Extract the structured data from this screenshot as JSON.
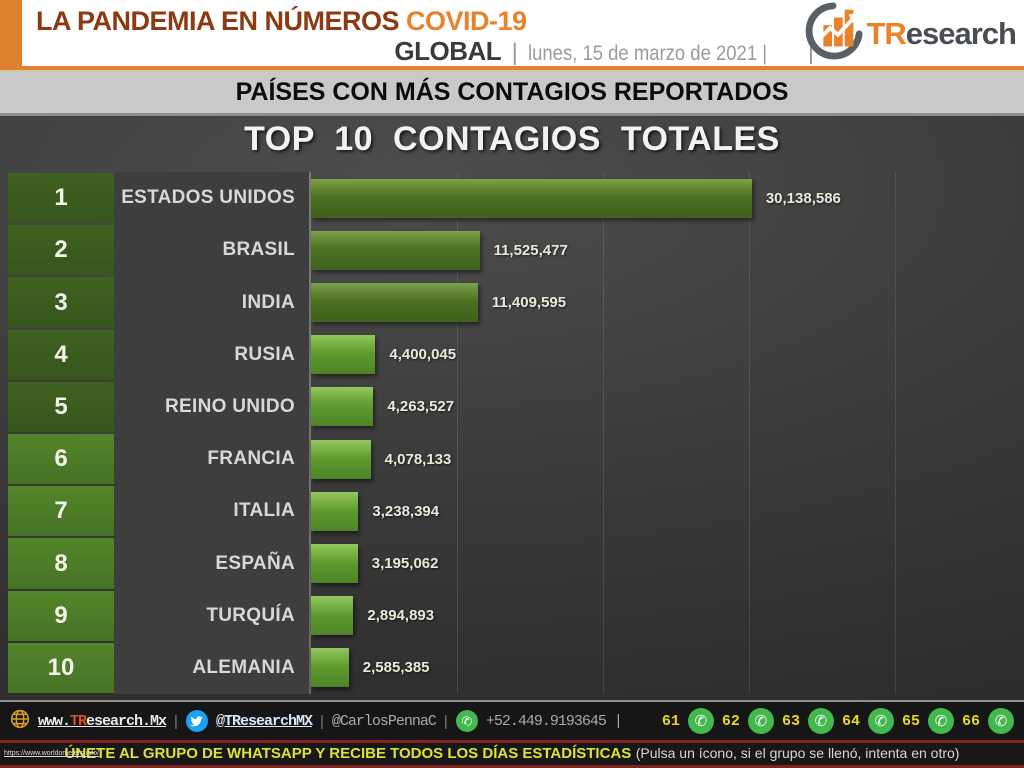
{
  "header": {
    "brand": "LA PANDEMIA EN NÚMEROS",
    "brand_accent": "COVID-19",
    "scope": "GLOBAL",
    "sep": "|",
    "date": "lunes, 15 de marzo de 2021",
    "date_suffix": "|",
    "logo": {
      "orange": "TR",
      "dark": "esearch"
    }
  },
  "subheader": {
    "title": "PAÍSES CON MÁS CONTAGIOS REPORTADOS"
  },
  "chart_data": {
    "type": "bar",
    "orientation": "horizontal",
    "title": "TOP 10 CONTAGIOS TOTALES",
    "ranks": [
      "1",
      "2",
      "3",
      "4",
      "5",
      "6",
      "7",
      "8",
      "9",
      "10"
    ],
    "categories": [
      "ESTADOS UNIDOS",
      "BRASIL",
      "INDIA",
      "RUSIA",
      "REINO UNIDO",
      "FRANCIA",
      "ITALIA",
      "ESPAÑA",
      "TURQUÍA",
      "ALEMANIA"
    ],
    "values": [
      30138586,
      11525477,
      11409595,
      4400045,
      4263527,
      4078133,
      3238394,
      3195062,
      2894893,
      2585385
    ],
    "value_labels": [
      "30,138,586",
      "11,525,477",
      "11,409,595",
      "4,400,045",
      "4,263,527",
      "4,078,133",
      "3,238,394",
      "3,195,062",
      "2,894,893",
      "2,585,385"
    ],
    "xlim": [
      0,
      48200000
    ],
    "gridline_interval": 10000000,
    "legend": "none",
    "grid": "vertical-faint"
  },
  "footer": {
    "site": {
      "prefix": "www.",
      "accent": "TR",
      "suffix": "esearch.Mx"
    },
    "sep": "|",
    "twitter_handle": "@TResearchMX",
    "alt_handle": "@CarlosPennaC",
    "phone": "+52.449.9193645",
    "phone_suffix": "|",
    "whatsapp_groups": [
      "61",
      "62",
      "63",
      "64",
      "65",
      "66"
    ]
  },
  "bottom_bar": {
    "url": "https://www.worldometers.info/",
    "main": "ÚNETE AL GRUPO DE WHATSAPP Y RECIBE TODOS LOS DÍAS ESTADÍSTICAS",
    "note": "(Pulsa un ícono, si el grupo se llenó, intenta en otro)"
  },
  "colors": {
    "accent_orange": "#e8832c",
    "brand_brown": "#8b3a12",
    "rank_green_dark": "#3b5c1f",
    "rank_green_light": "#4d7d27",
    "bar_green_dark": "#4e7323",
    "bar_green_light": "#5d9a2e",
    "footer_yellow": "#e6d82a",
    "divider_red": "#7e241e",
    "twitter_blue": "#1da1f2",
    "whatsapp_green": "#43b84d",
    "globe_gold": "#d7a422"
  }
}
